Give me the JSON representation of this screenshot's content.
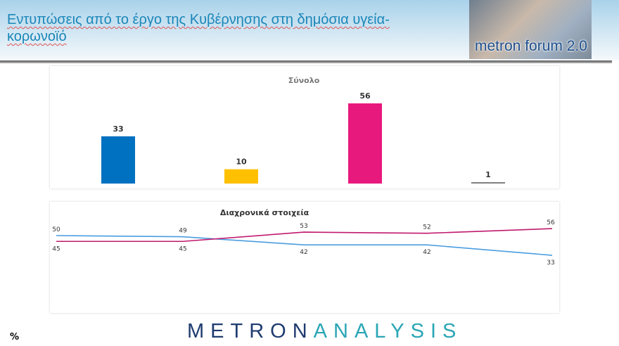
{
  "header": {
    "title": "Εντυπώσεις από το έργο της Κυβέρνησης στη δημόσια υγεία-κορωνοϊό",
    "logo_text": "metron forum 2.0"
  },
  "footer": {
    "unit": "%",
    "brand_part1": "METRON",
    "brand_part2": "ANALYSIS"
  },
  "chart_data": [
    {
      "type": "bar",
      "title": "Σύνολο",
      "categories": [
        "",
        "",
        "",
        ""
      ],
      "values": [
        33,
        10,
        56,
        1
      ],
      "colors": [
        "#0070c0",
        "#ffc000",
        "#e8197d",
        "#808080"
      ],
      "ylim": [
        0,
        60
      ],
      "grid": false
    },
    {
      "type": "line",
      "title": "Διαχρονικά στοιχεία",
      "x": [
        1,
        2,
        3,
        4,
        5
      ],
      "series": [
        {
          "values": [
            50,
            49,
            42,
            42,
            33
          ],
          "color": "#4a9de0"
        },
        {
          "values": [
            45,
            45,
            53,
            52,
            56
          ],
          "color": "#c0196e"
        }
      ],
      "grid": false
    }
  ]
}
